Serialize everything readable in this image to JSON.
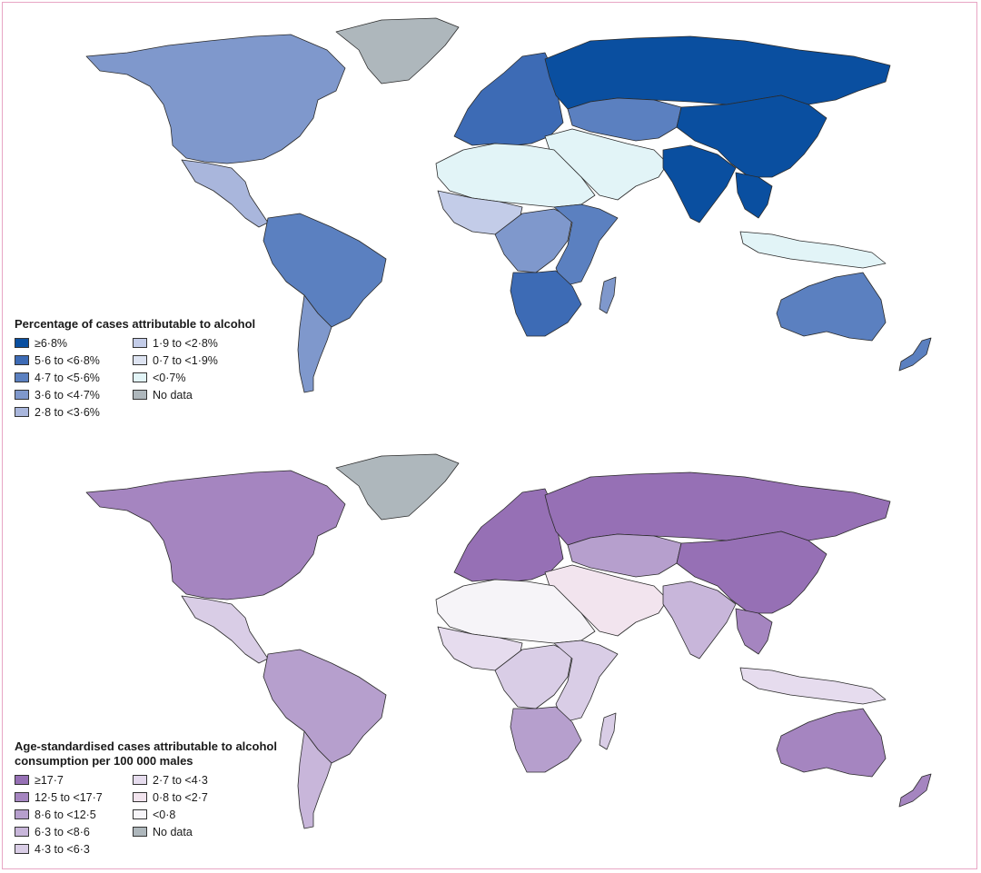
{
  "maps": [
    {
      "id": "percentage",
      "legend_title": "Percentage of cases attributable to alcohol",
      "legend_items": [
        {
          "label": "≥6·8%",
          "color": "#0a4fa0"
        },
        {
          "label": "5·6 to <6·8%",
          "color": "#3d6bb5"
        },
        {
          "label": "4·7 to <5·6%",
          "color": "#5b80c0"
        },
        {
          "label": "3·6 to <4·7%",
          "color": "#7f98cc"
        },
        {
          "label": "2·8 to <3·6%",
          "color": "#a9b6dc"
        },
        {
          "label": "1·9 to <2·8%",
          "color": "#c3cce8"
        },
        {
          "label": "0·7 to <1·9%",
          "color": "#dde3f1"
        },
        {
          "label": "<0·7%",
          "color": "#e2f4f7"
        },
        {
          "label": "No data",
          "color": "#aeb7bc"
        }
      ],
      "regions": {
        "north_america": "#7f98cc",
        "greenland": "#aeb7bc",
        "central_america": "#a9b6dc",
        "south_america": "#5b80c0",
        "south_america_south": "#7f98cc",
        "europe": "#3d6bb5",
        "russia": "#0a4fa0",
        "central_asia": "#5b80c0",
        "middle_east": "#e2f4f7",
        "south_asia": "#0a4fa0",
        "east_asia": "#0a4fa0",
        "southeast_asia": "#0a4fa0",
        "indonesia": "#e2f4f7",
        "north_africa": "#e2f4f7",
        "west_africa": "#c3cce8",
        "central_africa": "#7f98cc",
        "east_africa": "#5b80c0",
        "southern_africa": "#3d6bb5",
        "madagascar": "#7f98cc",
        "australia": "#5b80c0",
        "new_zealand": "#5b80c0"
      }
    },
    {
      "id": "rate",
      "legend_title_line1": "Age-standardised cases attributable to alcohol",
      "legend_title_line2": "consumption per 100 000 males",
      "legend_items": [
        {
          "label": "≥17·7",
          "color": "#9670b5"
        },
        {
          "label": "12·5 to <17·7",
          "color": "#a585c0"
        },
        {
          "label": "8·6 to <12·5",
          "color": "#b69fcd"
        },
        {
          "label": "6·3 to <8·6",
          "color": "#c8b6da"
        },
        {
          "label": "4·3 to <6·3",
          "color": "#d9cde6"
        },
        {
          "label": "2·7 to <4·3",
          "color": "#e6dcee"
        },
        {
          "label": "0·8 to <2·7",
          "color": "#f2e4ee"
        },
        {
          "label": "<0·8",
          "color": "#f6f4f8"
        },
        {
          "label": "No data",
          "color": "#aeb7bc"
        }
      ],
      "regions": {
        "north_america": "#a585c0",
        "greenland": "#aeb7bc",
        "central_america": "#d9cde6",
        "south_america": "#b69fcd",
        "south_america_south": "#c8b6da",
        "europe": "#9670b5",
        "russia": "#9670b5",
        "central_asia": "#b69fcd",
        "middle_east": "#f2e4ee",
        "south_asia": "#c8b6da",
        "east_asia": "#9670b5",
        "southeast_asia": "#a585c0",
        "indonesia": "#e6dcee",
        "north_africa": "#f6f4f8",
        "west_africa": "#e6dcee",
        "central_africa": "#d9cde6",
        "east_africa": "#d9cde6",
        "southern_africa": "#b69fcd",
        "madagascar": "#d9cde6",
        "australia": "#a585c0",
        "new_zealand": "#a585c0"
      }
    }
  ]
}
